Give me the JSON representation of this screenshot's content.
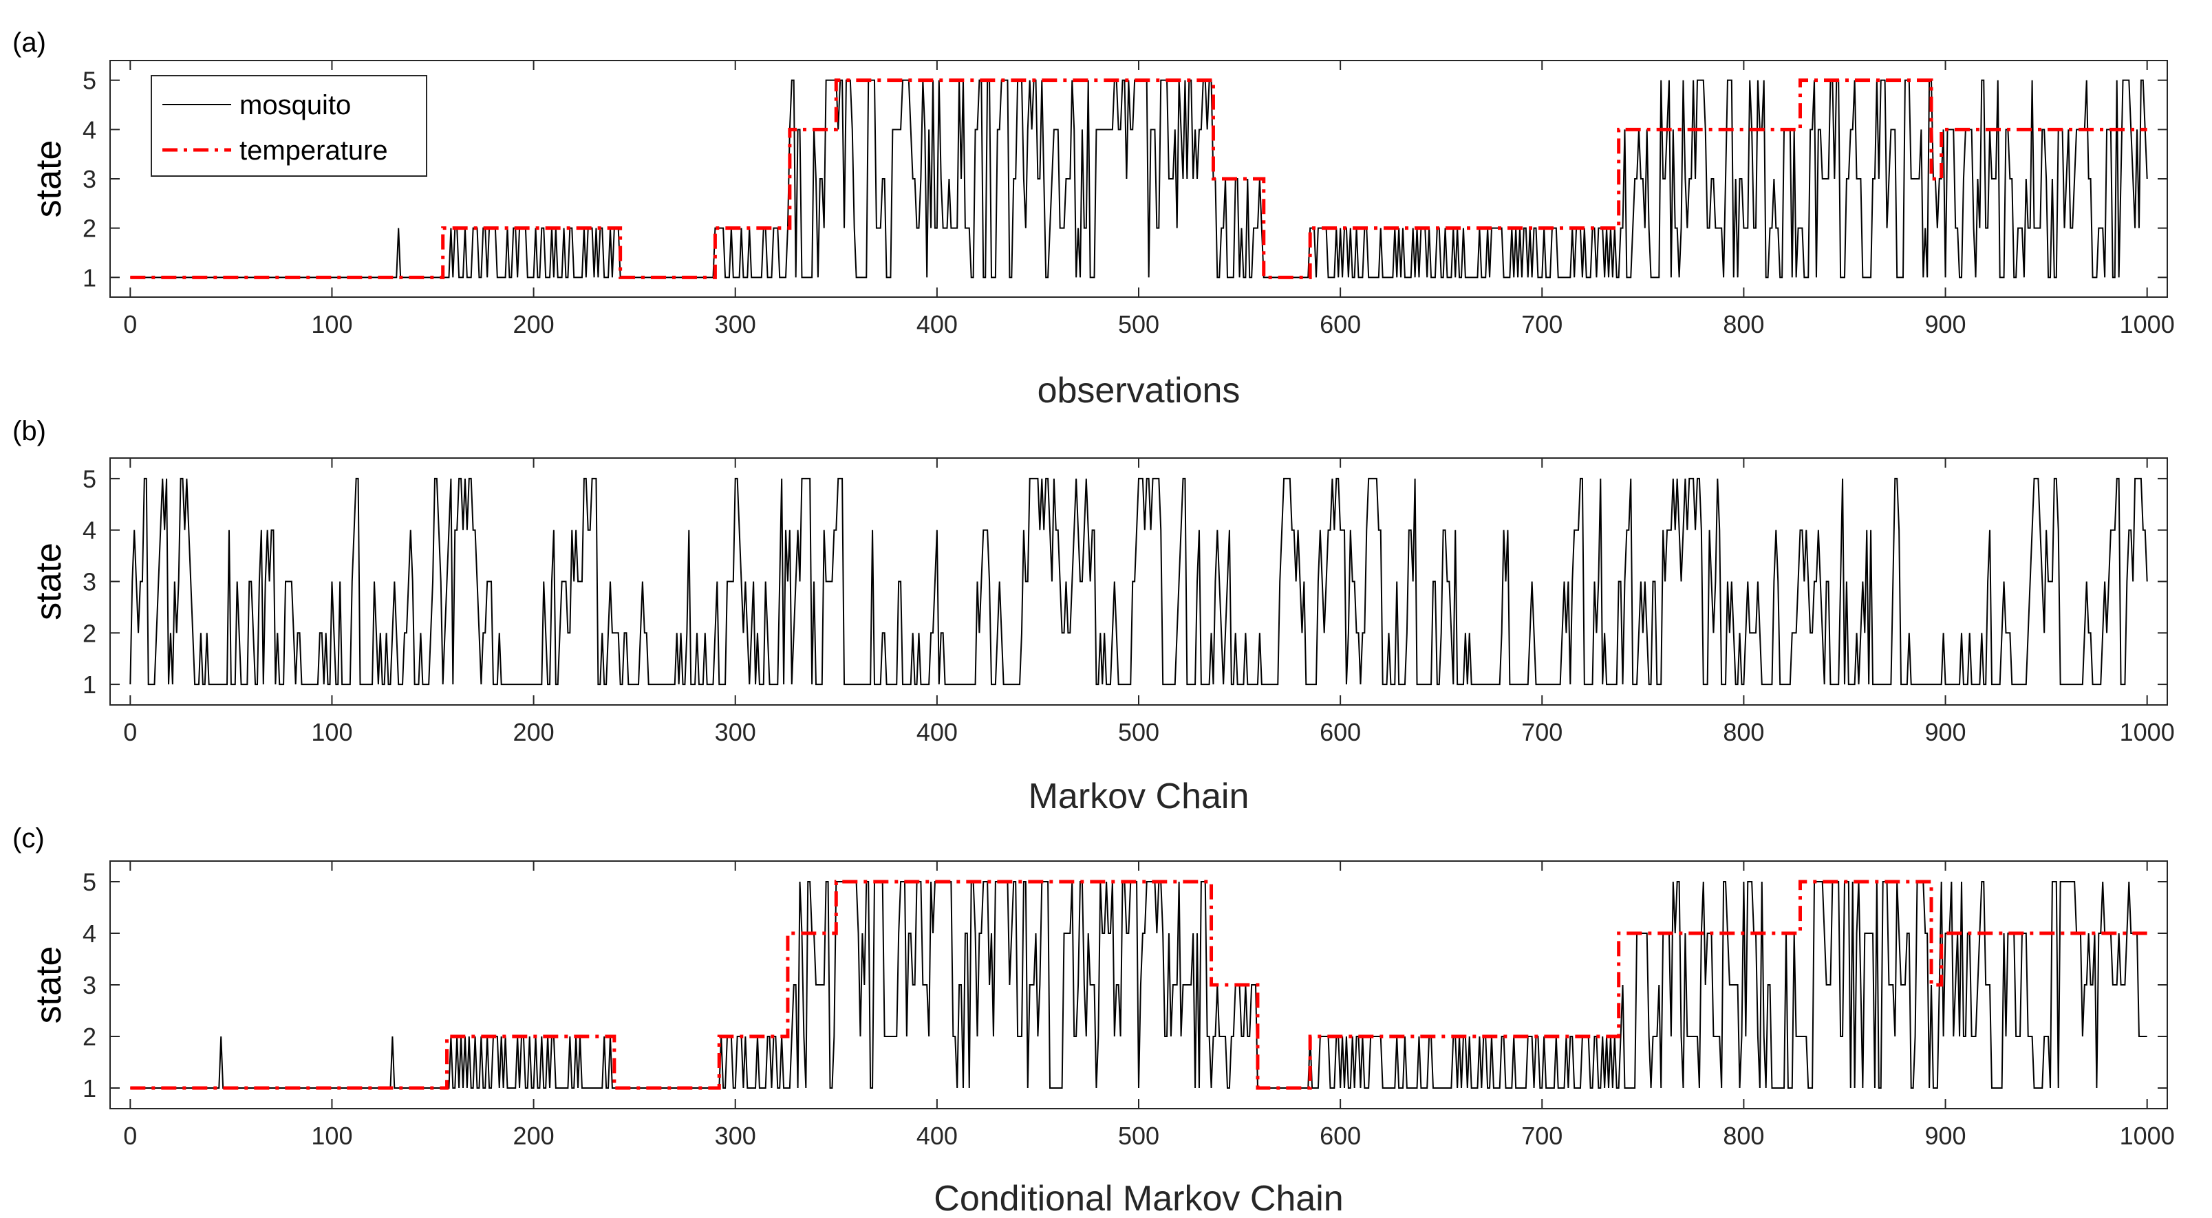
{
  "figure": {
    "background": "#ffffff"
  },
  "chart_data": [
    {
      "type": "line",
      "panel_label": "(a)",
      "xlabel": "observations",
      "ylabel": "state",
      "xlim": [
        -10,
        1010
      ],
      "ylim": [
        0.6,
        5.4
      ],
      "xticks": [
        0,
        100,
        200,
        300,
        400,
        500,
        600,
        700,
        800,
        900,
        1000
      ],
      "yticks": [
        1,
        2,
        3,
        4,
        5
      ],
      "legend": {
        "placement": "top-left",
        "entries": [
          "mosquito",
          "temperature"
        ]
      },
      "series": [
        {
          "name": "mosquito",
          "color": "#000000",
          "style": "solid",
          "generator": "noisy",
          "segments": [
            [
              0,
              155,
              1
            ],
            [
              155,
              243,
              2
            ],
            [
              243,
              290,
              1
            ],
            [
              290,
              327,
              2
            ],
            [
              327,
              350,
              4
            ],
            [
              350,
              537,
              5
            ],
            [
              537,
              562,
              3
            ],
            [
              562,
              585,
              1
            ],
            [
              585,
              738,
              2
            ],
            [
              738,
              828,
              4
            ],
            [
              828,
              893,
              5
            ],
            [
              893,
              898,
              3
            ],
            [
              898,
              1000,
              4
            ]
          ],
          "spikes": [
            [
              133,
              2
            ]
          ]
        },
        {
          "name": "temperature",
          "color": "#ff0000",
          "style": "dashdot",
          "segments": [
            [
              0,
              155,
              1
            ],
            [
              155,
              243,
              2
            ],
            [
              243,
              290,
              1
            ],
            [
              290,
              327,
              2
            ],
            [
              327,
              350,
              4
            ],
            [
              350,
              537,
              5
            ],
            [
              537,
              562,
              3
            ],
            [
              562,
              585,
              1
            ],
            [
              585,
              738,
              2
            ],
            [
              738,
              828,
              4
            ],
            [
              828,
              893,
              5
            ],
            [
              893,
              898,
              3
            ],
            [
              898,
              1000,
              4
            ]
          ]
        }
      ]
    },
    {
      "type": "line",
      "panel_label": "(b)",
      "xlabel": "Markov Chain",
      "ylabel": "state",
      "xlim": [
        -10,
        1010
      ],
      "ylim": [
        0.6,
        5.4
      ],
      "xticks": [
        0,
        100,
        200,
        300,
        400,
        500,
        600,
        700,
        800,
        900,
        1000
      ],
      "yticks": [
        1,
        2,
        3,
        4,
        5
      ],
      "series": [
        {
          "name": "Markov Chain",
          "color": "#000000",
          "style": "solid",
          "generator": "markov",
          "n": 1000
        }
      ]
    },
    {
      "type": "line",
      "panel_label": "(c)",
      "xlabel": "Conditional Markov Chain",
      "ylabel": "state",
      "xlim": [
        -10,
        1010
      ],
      "ylim": [
        0.6,
        5.4
      ],
      "xticks": [
        0,
        100,
        200,
        300,
        400,
        500,
        600,
        700,
        800,
        900,
        1000
      ],
      "yticks": [
        1,
        2,
        3,
        4,
        5
      ],
      "series": [
        {
          "name": "Conditional Markov Chain",
          "color": "#000000",
          "style": "solid",
          "generator": "noisy",
          "segments": [
            [
              0,
              157,
              1
            ],
            [
              157,
              240,
              2
            ],
            [
              240,
              292,
              1
            ],
            [
              292,
              326,
              2
            ],
            [
              326,
              350,
              4
            ],
            [
              350,
              536,
              5
            ],
            [
              536,
              559,
              3
            ],
            [
              559,
              585,
              1
            ],
            [
              585,
              738,
              2
            ],
            [
              738,
              828,
              4
            ],
            [
              828,
              893,
              5
            ],
            [
              893,
              898,
              3
            ],
            [
              898,
              1000,
              4
            ]
          ],
          "spikes": [
            [
              45,
              2
            ],
            [
              130,
              2
            ]
          ]
        },
        {
          "name": "temperature",
          "color": "#ff0000",
          "style": "dashdot",
          "segments": [
            [
              0,
              157,
              1
            ],
            [
              157,
              240,
              2
            ],
            [
              240,
              292,
              1
            ],
            [
              292,
              326,
              2
            ],
            [
              326,
              350,
              4
            ],
            [
              350,
              536,
              5
            ],
            [
              536,
              559,
              3
            ],
            [
              559,
              585,
              1
            ],
            [
              585,
              738,
              2
            ],
            [
              738,
              828,
              4
            ],
            [
              828,
              893,
              5
            ],
            [
              893,
              898,
              3
            ],
            [
              898,
              1000,
              4
            ]
          ]
        }
      ]
    }
  ]
}
